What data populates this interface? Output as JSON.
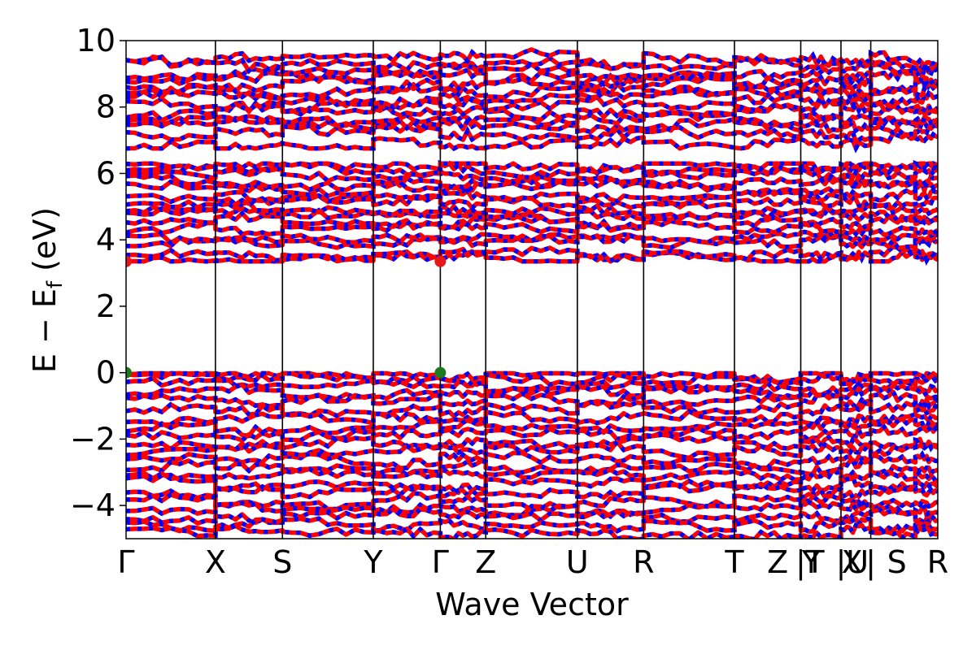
{
  "chart_data": {
    "type": "line",
    "xlabel": "Wave Vector",
    "ylabel_parts": {
      "main": "E − E",
      "subscript": "f",
      "unit": " (eV)"
    },
    "ylim": [
      -5,
      10
    ],
    "y_ticks": [
      -4,
      -2,
      0,
      2,
      4,
      6,
      8,
      10
    ],
    "y_tick_labels": [
      "−4",
      "−2",
      "0",
      "2",
      "4",
      "6",
      "8",
      "10"
    ],
    "kpath_x": [
      0,
      1.2,
      2.1,
      3.32,
      4.22,
      4.83,
      6.06,
      6.95,
      8.17,
      9.06,
      9.6,
      10.0,
      10.6,
      10.9
    ],
    "kpath_labels": [
      {
        "x": 0,
        "label": "Γ"
      },
      {
        "x": 1.2,
        "label": "X"
      },
      {
        "x": 2.1,
        "label": "S"
      },
      {
        "x": 3.32,
        "label": "Y"
      },
      {
        "x": 4.22,
        "label": "Γ"
      },
      {
        "x": 4.83,
        "label": "Z"
      },
      {
        "x": 6.06,
        "label": "U"
      },
      {
        "x": 6.95,
        "label": "R"
      },
      {
        "x": 8.17,
        "label": "T"
      },
      {
        "x": 8.75,
        "label": "Z"
      },
      {
        "x": 9.06,
        "label": "|"
      },
      {
        "x": 9.2,
        "label": "Y"
      },
      {
        "x": 9.25,
        "label": "T"
      },
      {
        "x": 9.6,
        "label": "|"
      },
      {
        "x": 9.75,
        "label": "X"
      },
      {
        "x": 9.82,
        "label": "U"
      },
      {
        "x": 10.0,
        "label": "|"
      },
      {
        "x": 10.35,
        "label": "S"
      },
      {
        "x": 10.9,
        "label": "R"
      }
    ],
    "vertical_lines_x": [
      1.2,
      2.1,
      3.32,
      4.22,
      4.83,
      6.06,
      6.95,
      8.17,
      9.06,
      9.6,
      10.0
    ],
    "xlim": [
      0,
      10.9
    ],
    "series": [],
    "band_color_a": "#ff0000",
    "band_color_b": "#0000ff",
    "conduction_bands": [
      3.45,
      3.55,
      3.95,
      4.1,
      4.35,
      4.55,
      4.75,
      4.95,
      5.15,
      5.35,
      5.55,
      5.75,
      5.95,
      6.15,
      6.25
    ],
    "upper_bands": [
      6.9,
      7.25,
      7.45,
      7.65,
      7.85,
      8.05,
      8.25,
      8.45,
      8.65,
      8.85,
      9.05,
      9.25,
      9.45
    ],
    "valence_bands": [
      -0.05,
      -0.2,
      -0.4,
      -0.6,
      -0.85,
      -1.1,
      -1.35,
      -1.6,
      -1.85,
      -2.1,
      -2.35,
      -2.6,
      -2.85,
      -3.1,
      -3.35,
      -3.6,
      -3.85,
      -4.1,
      -4.35,
      -4.6,
      -4.85
    ],
    "markers": [
      {
        "x": 0,
        "y": 3.35,
        "color": "#e8161b"
      },
      {
        "x": 4.22,
        "y": 3.35,
        "color": "#e8161b"
      },
      {
        "x": 0,
        "y": 0,
        "color": "#1e7a1e"
      },
      {
        "x": 4.22,
        "y": 0,
        "color": "#1e7a1e"
      }
    ],
    "grid": false
  }
}
